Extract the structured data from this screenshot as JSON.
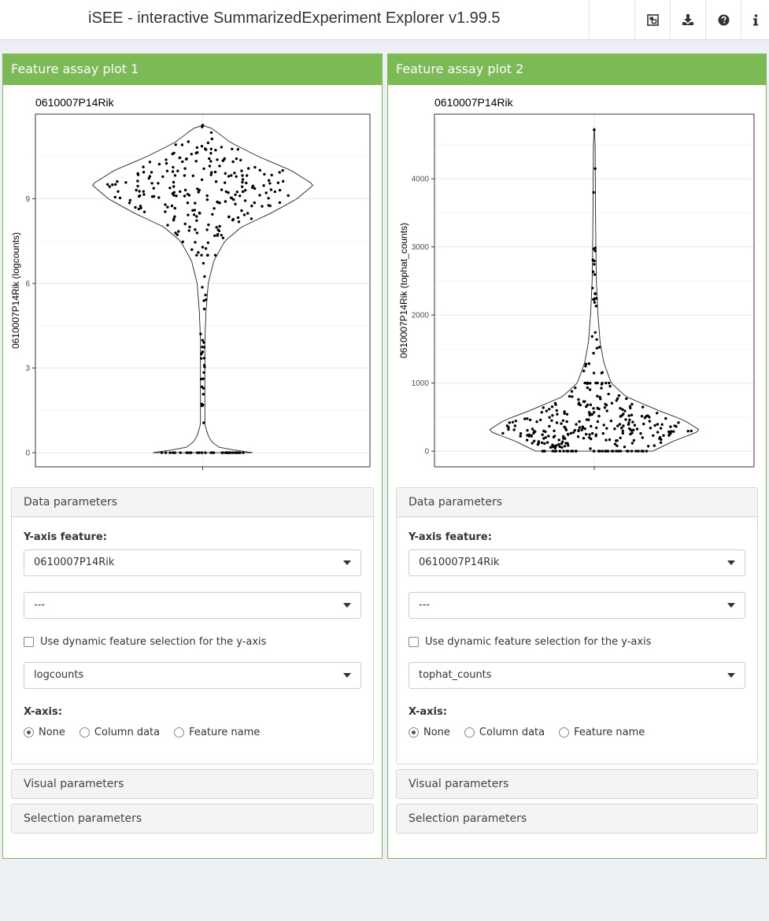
{
  "header": {
    "title": "iSEE - interactive SummarizedExperiment Explorer v1.99.5",
    "buttons": [
      {
        "icon": "object-group-icon"
      },
      {
        "icon": "download-icon"
      },
      {
        "icon": "question-circle-icon"
      },
      {
        "icon": "info-icon"
      }
    ]
  },
  "panels": [
    {
      "title": "Feature assay plot 1",
      "data_params": {
        "header": "Data parameters",
        "y_axis_label": "Y-axis feature:",
        "y_feature": "0610007P14Rik",
        "y_secondary": "---",
        "dynamic_label": "Use dynamic feature selection for the y-axis",
        "assay": "logcounts",
        "x_axis_label": "X-axis:",
        "x_options": [
          "None",
          "Column data",
          "Feature name"
        ],
        "x_selected": "None"
      },
      "visual_header": "Visual parameters",
      "selection_header": "Selection parameters"
    },
    {
      "title": "Feature assay plot 2",
      "data_params": {
        "header": "Data parameters",
        "y_axis_label": "Y-axis feature:",
        "y_feature": "0610007P14Rik",
        "y_secondary": "---",
        "dynamic_label": "Use dynamic feature selection for the y-axis",
        "assay": "tophat_counts",
        "x_axis_label": "X-axis:",
        "x_options": [
          "None",
          "Column data",
          "Feature name"
        ],
        "x_selected": "None"
      },
      "visual_header": "Visual parameters",
      "selection_header": "Selection parameters"
    }
  ],
  "chart_data": [
    {
      "type": "violin",
      "title": "0610007P14Rik",
      "xlabel": "",
      "ylabel": "0610007P14Rik (logcounts)",
      "ylim": [
        -0.5,
        12
      ],
      "yticks": [
        0,
        3,
        6,
        9
      ],
      "grid": true,
      "violin_profile": [
        [
          0.0,
          0.45
        ],
        [
          0.08,
          0.3
        ],
        [
          0.2,
          0.14
        ],
        [
          0.4,
          0.08
        ],
        [
          0.6,
          0.05
        ],
        [
          1.0,
          0.02
        ],
        [
          2.0,
          0.02
        ],
        [
          3.0,
          0.02
        ],
        [
          4.0,
          0.02
        ],
        [
          5.0,
          0.03
        ],
        [
          6.0,
          0.05
        ],
        [
          6.8,
          0.1
        ],
        [
          7.5,
          0.2
        ],
        [
          8.0,
          0.35
        ],
        [
          8.5,
          0.62
        ],
        [
          9.0,
          0.85
        ],
        [
          9.5,
          1.0
        ],
        [
          10.0,
          0.8
        ],
        [
          10.5,
          0.5
        ],
        [
          11.0,
          0.25
        ],
        [
          11.5,
          0.08
        ],
        [
          11.6,
          0.0
        ]
      ],
      "points": {
        "zero_count": 30,
        "bulk_count": 240,
        "bulk_center": 9.3,
        "bulk_sd": 1.1,
        "tail_count": 30,
        "tail_range": [
          0.5,
          7.0
        ],
        "max": 11.6
      }
    },
    {
      "type": "violin",
      "title": "0610007P14Rik",
      "xlabel": "",
      "ylabel": "0610007P14Rik (tophat_counts)",
      "ylim": [
        -230,
        4950
      ],
      "yticks": [
        0,
        1000,
        2000,
        3000,
        4000
      ],
      "grid": true,
      "violin_profile": [
        [
          0,
          0.55
        ],
        [
          150,
          0.75
        ],
        [
          300,
          1.0
        ],
        [
          450,
          0.85
        ],
        [
          600,
          0.6
        ],
        [
          800,
          0.3
        ],
        [
          1000,
          0.16
        ],
        [
          1300,
          0.09
        ],
        [
          1600,
          0.055
        ],
        [
          2000,
          0.035
        ],
        [
          2500,
          0.02
        ],
        [
          3000,
          0.015
        ],
        [
          3500,
          0.012
        ],
        [
          4000,
          0.01
        ],
        [
          4500,
          0.008
        ],
        [
          4750,
          0.0
        ]
      ],
      "points": {
        "zero_count": 40,
        "bulk_count": 250,
        "bulk_scale": 420,
        "tail_count": 30,
        "tail_range": [
          1000,
          3000
        ],
        "outliers": [
          3800,
          4150,
          4720
        ],
        "max": 4720
      }
    }
  ],
  "colors": {
    "panel_header": "#7cba56",
    "page_background": "#ecf0f5",
    "box_header": "#f4f4f4"
  }
}
